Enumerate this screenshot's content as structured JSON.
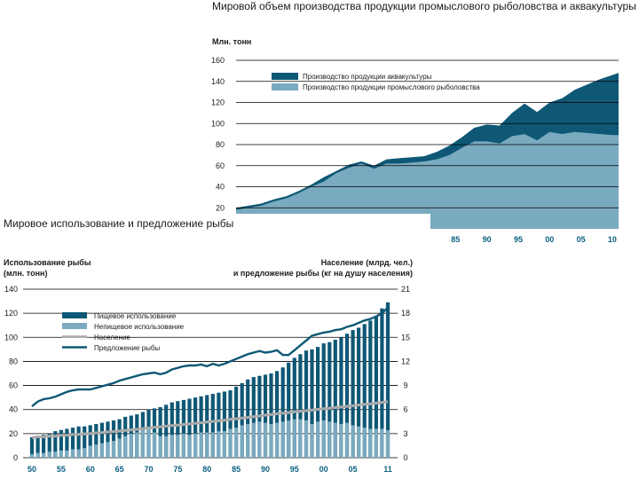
{
  "colors": {
    "dark_blue": "#0e5876",
    "light_blue": "#7aaabf",
    "grey_line": "#a9a9a9",
    "axis_blue": "#0b5f80",
    "text": "#1a1a1a"
  },
  "chart_data": [
    {
      "type": "area",
      "title": "Мировой объем производства продукции промыслового рыболовства и аквакультуры",
      "ylabel": "Млн. тонн",
      "ylim": [
        0,
        160
      ],
      "yticks": [
        20,
        40,
        60,
        80,
        100,
        120,
        140,
        160
      ],
      "xlim": [
        1950,
        2011
      ],
      "xticks_visible": [
        {
          "value": 1985,
          "label": "85"
        },
        {
          "value": 1990,
          "label": "90"
        },
        {
          "value": 1995,
          "label": "95"
        },
        {
          "value": 2000,
          "label": "00"
        },
        {
          "value": 2005,
          "label": "05"
        },
        {
          "value": 2010,
          "label": "10"
        }
      ],
      "legend_position": "top-left",
      "x": [
        1950,
        1952,
        1954,
        1956,
        1958,
        1960,
        1962,
        1964,
        1966,
        1968,
        1970,
        1972,
        1974,
        1976,
        1978,
        1980,
        1982,
        1984,
        1986,
        1988,
        1990,
        1992,
        1994,
        1996,
        1998,
        2000,
        2002,
        2004,
        2006,
        2008,
        2010,
        2011
      ],
      "series": [
        {
          "name": "Производство продукции аквакультуры",
          "cumulative_top": [
            20,
            22,
            24,
            28,
            31,
            36,
            42,
            49,
            55,
            61,
            64,
            60,
            66,
            67,
            68,
            69,
            73,
            79,
            87,
            96,
            99,
            98,
            110,
            119,
            111,
            120,
            124,
            132,
            137,
            142,
            146,
            148
          ]
        },
        {
          "name": "Производство продукции промыслового рыболовства",
          "values": [
            18,
            20,
            22,
            26,
            29,
            34,
            40,
            45,
            53,
            58,
            62,
            57,
            62,
            62,
            63,
            64,
            66,
            70,
            77,
            83,
            83,
            81,
            88,
            90,
            84,
            92,
            90,
            92,
            91,
            90,
            89,
            89
          ]
        }
      ]
    },
    {
      "type": "bar",
      "title": "Мировое использование и предложение рыбы",
      "ylabel_left": "Использование рыбы (млн. тонн)",
      "ylabel_left_lines": [
        "Использование рыбы",
        "(млн. тонн)"
      ],
      "ylabel_right_lines": [
        "Население (млрд. чел.)",
        "и предложение рыбы (кг на душу населения)"
      ],
      "ylim_left": [
        0,
        140
      ],
      "yticks_left": [
        0,
        20,
        40,
        60,
        80,
        100,
        120,
        140
      ],
      "ylim_right": [
        0,
        21
      ],
      "yticks_right": [
        0,
        3,
        6,
        9,
        12,
        15,
        18,
        21
      ],
      "xticks": [
        {
          "value": 1950,
          "label": "50"
        },
        {
          "value": 1955,
          "label": "55"
        },
        {
          "value": 1960,
          "label": "60"
        },
        {
          "value": 1965,
          "label": "65"
        },
        {
          "value": 1970,
          "label": "70"
        },
        {
          "value": 1975,
          "label": "75"
        },
        {
          "value": 1980,
          "label": "80"
        },
        {
          "value": 1985,
          "label": "85"
        },
        {
          "value": 1990,
          "label": "90"
        },
        {
          "value": 1995,
          "label": "95"
        },
        {
          "value": 2000,
          "label": "00"
        },
        {
          "value": 2005,
          "label": "05"
        },
        {
          "value": 2011,
          "label": "11"
        }
      ],
      "legend_position": "top-left",
      "years": [
        1950,
        1951,
        1952,
        1953,
        1954,
        1955,
        1956,
        1957,
        1958,
        1959,
        1960,
        1961,
        1962,
        1963,
        1964,
        1965,
        1966,
        1967,
        1968,
        1969,
        1970,
        1971,
        1972,
        1973,
        1974,
        1975,
        1976,
        1977,
        1978,
        1979,
        1980,
        1981,
        1982,
        1983,
        1984,
        1985,
        1986,
        1987,
        1988,
        1989,
        1990,
        1991,
        1992,
        1993,
        1994,
        1995,
        1996,
        1997,
        1998,
        1999,
        2000,
        2001,
        2002,
        2003,
        2004,
        2005,
        2006,
        2007,
        2008,
        2009,
        2010,
        2011
      ],
      "series": [
        {
          "name": "Пищевое использование",
          "axis": "left",
          "kind": "bar",
          "values": [
            17,
            18,
            19,
            20,
            22,
            23,
            24,
            25,
            26,
            26,
            27,
            28,
            29,
            30,
            31,
            32,
            34,
            35,
            36,
            38,
            40,
            41,
            42,
            44,
            46,
            47,
            48,
            49,
            50,
            51,
            52,
            53,
            54,
            55,
            56,
            59,
            62,
            65,
            67,
            68,
            69,
            70,
            72,
            75,
            79,
            83,
            86,
            89,
            90,
            92,
            95,
            96,
            98,
            100,
            103,
            106,
            108,
            111,
            114,
            118,
            124,
            129
          ]
        },
        {
          "name": "Непищевое использование",
          "axis": "left",
          "kind": "bar",
          "values": [
            3,
            4,
            4,
            5,
            5,
            6,
            6,
            7,
            7,
            8,
            10,
            11,
            12,
            13,
            14,
            16,
            18,
            20,
            21,
            23,
            24,
            21,
            18,
            18,
            19,
            19,
            20,
            19,
            20,
            21,
            21,
            21,
            22,
            22,
            24,
            25,
            27,
            28,
            29,
            30,
            29,
            28,
            29,
            30,
            31,
            32,
            32,
            31,
            28,
            30,
            31,
            30,
            29,
            28,
            29,
            27,
            26,
            25,
            24,
            24,
            24,
            23
          ]
        },
        {
          "name": "Население",
          "axis": "right",
          "kind": "line",
          "values": [
            2.5,
            2.6,
            2.6,
            2.7,
            2.7,
            2.8,
            2.8,
            2.9,
            2.9,
            2.97,
            3.0,
            3.1,
            3.14,
            3.2,
            3.26,
            3.33,
            3.4,
            3.47,
            3.54,
            3.62,
            3.7,
            3.78,
            3.86,
            3.94,
            4.0,
            4.07,
            4.14,
            4.21,
            4.28,
            4.36,
            4.44,
            4.52,
            4.6,
            4.68,
            4.77,
            4.85,
            4.94,
            5.03,
            5.12,
            5.21,
            5.3,
            5.39,
            5.47,
            5.55,
            5.63,
            5.71,
            5.79,
            5.86,
            5.94,
            6.02,
            6.1,
            6.17,
            6.25,
            6.33,
            6.4,
            6.48,
            6.56,
            6.64,
            6.72,
            6.8,
            6.9,
            6.97
          ]
        },
        {
          "name": "Предложение рыбы",
          "axis": "right",
          "kind": "line",
          "values": [
            6.4,
            7.0,
            7.3,
            7.4,
            7.6,
            7.9,
            8.2,
            8.4,
            8.5,
            8.5,
            8.5,
            8.7,
            8.9,
            9.1,
            9.3,
            9.6,
            9.8,
            10.0,
            10.2,
            10.4,
            10.5,
            10.6,
            10.4,
            10.6,
            11.0,
            11.2,
            11.4,
            11.5,
            11.5,
            11.6,
            11.4,
            11.7,
            11.5,
            11.7,
            12.0,
            12.3,
            12.6,
            12.9,
            13.1,
            13.3,
            13.1,
            13.2,
            13.4,
            12.8,
            12.8,
            13.4,
            14.0,
            14.6,
            15.2,
            15.4,
            15.6,
            15.7,
            15.9,
            16.0,
            16.3,
            16.5,
            16.8,
            17.1,
            17.3,
            17.6,
            18.0,
            18.7
          ]
        }
      ]
    }
  ]
}
